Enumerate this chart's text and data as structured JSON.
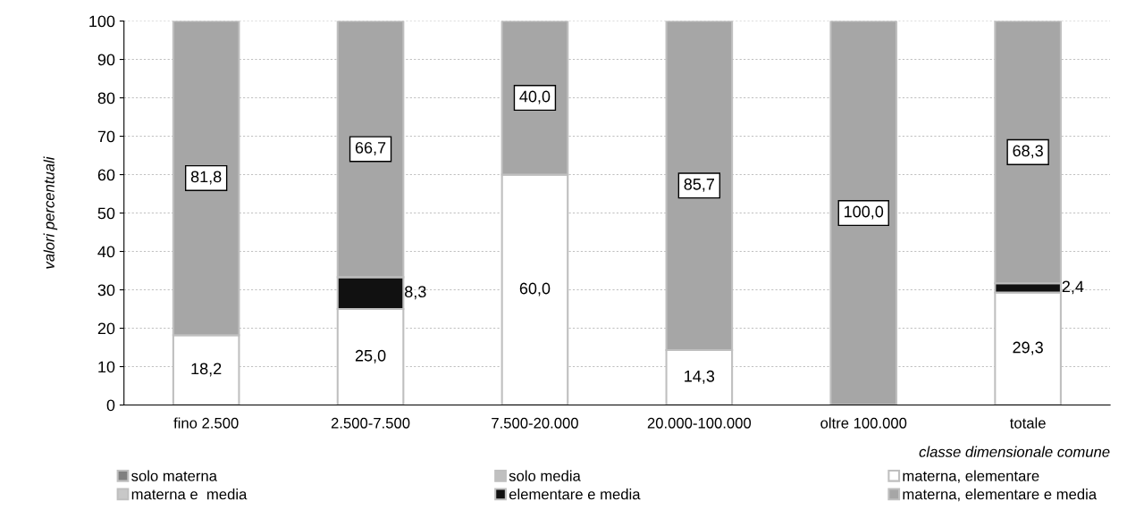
{
  "chart_data": {
    "type": "bar",
    "stacked": true,
    "ylabel": "valori percentuali",
    "xlabel": "classe dimensionale comune",
    "categories": [
      "fino 2.500",
      "2.500-7.500",
      "7.500-20.000",
      "20.000-100.000",
      "oltre 100.000",
      "totale"
    ],
    "series": [
      {
        "name": "solo materna",
        "color": "#808080",
        "values": [
          0,
          0,
          0,
          0,
          0,
          0
        ]
      },
      {
        "name": "solo media",
        "color": "#c0c0c0",
        "values": [
          0,
          0,
          0,
          0,
          0,
          0
        ]
      },
      {
        "name": "materna, elementare",
        "color": "#ffffff",
        "values": [
          18.2,
          25.0,
          60.0,
          14.3,
          0,
          29.3
        ],
        "value_labels": [
          "18,2",
          "25,0",
          "60,0",
          "14,3",
          null,
          "29,3"
        ]
      },
      {
        "name": "materna e  media",
        "color": "#c8c8c8",
        "values": [
          0,
          0,
          0,
          0,
          0,
          0
        ]
      },
      {
        "name": "elementare e media",
        "color": "#111111",
        "values": [
          0,
          8.3,
          0,
          0,
          0,
          2.4
        ],
        "value_labels": [
          null,
          "8,3",
          null,
          null,
          null,
          "2,4"
        ]
      },
      {
        "name": "materna, elementare e media",
        "color": "#a6a6a6",
        "values": [
          81.8,
          66.7,
          40.0,
          85.7,
          100.0,
          68.3
        ],
        "value_labels": [
          "81,8",
          "66,7",
          "40,0",
          "85,7",
          "100,0",
          "68,3"
        ]
      }
    ],
    "ylim": [
      0,
      100
    ],
    "yticks": [
      0,
      10,
      20,
      30,
      40,
      50,
      60,
      70,
      80,
      90,
      100
    ],
    "grid": "y",
    "legend": "bottom"
  }
}
